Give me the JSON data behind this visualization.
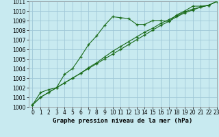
{
  "title": "Graphe pression niveau de la mer (hPa)",
  "bg_color": "#c8eaf0",
  "grid_color": "#a0c8d8",
  "line_color": "#1a6b1a",
  "xlim": [
    -0.5,
    23
  ],
  "ylim": [
    1000,
    1011
  ],
  "xticks": [
    0,
    1,
    2,
    3,
    4,
    5,
    6,
    7,
    8,
    9,
    10,
    11,
    12,
    13,
    14,
    15,
    16,
    17,
    18,
    19,
    20,
    21,
    22,
    23
  ],
  "yticks": [
    1000,
    1001,
    1002,
    1003,
    1004,
    1005,
    1006,
    1007,
    1008,
    1009,
    1010,
    1011
  ],
  "line1_x": [
    0,
    1,
    2,
    3,
    4,
    5,
    6,
    7,
    8,
    9,
    10,
    11,
    12,
    13,
    14,
    15,
    16,
    17,
    18,
    19,
    20,
    21,
    22,
    23
  ],
  "line1_y": [
    1000.2,
    1001.5,
    1001.8,
    1002.0,
    1003.4,
    1004.0,
    1005.2,
    1006.5,
    1007.4,
    1008.5,
    1009.4,
    1009.3,
    1009.2,
    1008.6,
    1008.6,
    1009.0,
    1009.0,
    1008.9,
    1009.6,
    1010.0,
    1010.5,
    1010.5,
    1010.6,
    1011.0
  ],
  "line2_x": [
    0,
    1,
    2,
    3,
    4,
    5,
    6,
    7,
    8,
    9,
    10,
    11,
    12,
    13,
    14,
    15,
    16,
    17,
    18,
    19,
    20,
    21,
    22,
    23
  ],
  "line2_y": [
    1000.2,
    1001.0,
    1001.5,
    1002.0,
    1002.5,
    1003.0,
    1003.5,
    1004.0,
    1004.5,
    1005.0,
    1005.5,
    1006.0,
    1006.5,
    1007.0,
    1007.5,
    1008.0,
    1008.5,
    1008.9,
    1009.4,
    1009.8,
    1010.1,
    1010.4,
    1010.6,
    1011.0
  ],
  "line3_x": [
    0,
    1,
    2,
    3,
    4,
    5,
    6,
    7,
    8,
    9,
    10,
    11,
    12,
    13,
    14,
    15,
    16,
    17,
    18,
    19,
    20,
    21,
    22,
    23
  ],
  "line3_y": [
    1000.2,
    1001.0,
    1001.5,
    1002.0,
    1002.5,
    1003.0,
    1003.5,
    1004.1,
    1004.6,
    1005.2,
    1005.8,
    1006.3,
    1006.8,
    1007.3,
    1007.8,
    1008.2,
    1008.7,
    1009.1,
    1009.5,
    1009.9,
    1010.2,
    1010.4,
    1010.6,
    1011.0
  ],
  "tick_fontsize": 5.5,
  "label_fontsize": 6.5,
  "figsize": [
    3.2,
    2.0
  ],
  "dpi": 100
}
